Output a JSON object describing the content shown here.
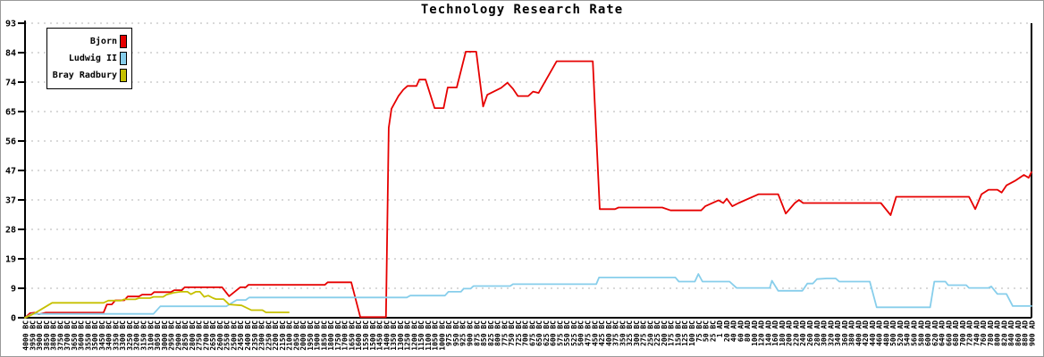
{
  "title": "Technology Research Rate",
  "legend": {
    "entries": [
      {
        "label": "Bjorn",
        "color": "#e60000"
      },
      {
        "label": "Ludwig II",
        "color": "#87ceeb"
      },
      {
        "label": "Bray Radbury",
        "color": "#c6c000"
      }
    ]
  },
  "axis": {
    "y_tick_labels": [
      "0",
      "9",
      "19",
      "28",
      "37",
      "47",
      "56",
      "65",
      "74",
      "84",
      "93"
    ],
    "y_min": 0,
    "y_max": 93
  },
  "chart_data": {
    "type": "line",
    "title": "Technology Research Rate",
    "xlabel": "",
    "ylabel": "",
    "ylim": [
      0,
      93
    ],
    "grid": "horizontal-dotted",
    "legend_position": "top-left",
    "y_tick_labels": [
      "0",
      "9",
      "19",
      "28",
      "37",
      "47",
      "56",
      "65",
      "74",
      "84",
      "93"
    ],
    "y_tick_values": [
      0,
      9.3,
      18.6,
      27.9,
      37.2,
      46.5,
      55.8,
      65.1,
      74.4,
      83.7,
      93
    ],
    "x_labels": [
      "4000 BC",
      "3950 BC",
      "3900 BC",
      "3850 BC",
      "3800 BC",
      "3750 BC",
      "3700 BC",
      "3650 BC",
      "3600 BC",
      "3550 BC",
      "3500 BC",
      "3450 BC",
      "3400 BC",
      "3350 BC",
      "3300 BC",
      "3250 BC",
      "3200 BC",
      "3150 BC",
      "3100 BC",
      "3050 BC",
      "3000 BC",
      "2950 BC",
      "2900 BC",
      "2850 BC",
      "2800 BC",
      "2750 BC",
      "2700 BC",
      "2650 BC",
      "2600 BC",
      "2550 BC",
      "2500 BC",
      "2450 BC",
      "2400 BC",
      "2350 BC",
      "2300 BC",
      "2250 BC",
      "2200 BC",
      "2150 BC",
      "2100 BC",
      "2050 BC",
      "2000 BC",
      "1950 BC",
      "1900 BC",
      "1850 BC",
      "1800 BC",
      "1750 BC",
      "1700 BC",
      "1650 BC",
      "1600 BC",
      "1550 BC",
      "1500 BC",
      "1450 BC",
      "1400 BC",
      "1350 BC",
      "1300 BC",
      "1250 BC",
      "1200 BC",
      "1150 BC",
      "1100 BC",
      "1050 BC",
      "1000 BC",
      "975 BC",
      "950 BC",
      "925 BC",
      "900 BC",
      "875 BC",
      "850 BC",
      "825 BC",
      "800 BC",
      "775 BC",
      "750 BC",
      "725 BC",
      "700 BC",
      "675 BC",
      "650 BC",
      "625 BC",
      "600 BC",
      "575 BC",
      "550 BC",
      "525 BC",
      "500 BC",
      "475 BC",
      "450 BC",
      "425 BC",
      "400 BC",
      "375 BC",
      "350 BC",
      "325 BC",
      "300 BC",
      "275 BC",
      "250 BC",
      "225 BC",
      "200 BC",
      "175 BC",
      "150 BC",
      "125 BC",
      "100 BC",
      "75 BC",
      "50 BC",
      "25 BC",
      "1 AD",
      "20 AD",
      "40 AD",
      "60 AD",
      "80 AD",
      "100 AD",
      "120 AD",
      "140 AD",
      "160 AD",
      "180 AD",
      "200 AD",
      "220 AD",
      "240 AD",
      "260 AD",
      "280 AD",
      "300 AD",
      "320 AD",
      "340 AD",
      "360 AD",
      "380 AD",
      "400 AD",
      "420 AD",
      "440 AD",
      "460 AD",
      "480 AD",
      "500 AD",
      "520 AD",
      "540 AD",
      "560 AD",
      "580 AD",
      "600 AD",
      "620 AD",
      "640 AD",
      "660 AD",
      "680 AD",
      "700 AD",
      "720 AD",
      "740 AD",
      "760 AD",
      "780 AD",
      "800 AD",
      "820 AD",
      "840 AD",
      "860 AD",
      "880 AD",
      "900 AD"
    ],
    "series": [
      {
        "name": "Bjorn",
        "color": "#e60000",
        "points": [
          [
            0,
            0
          ],
          [
            0.7,
            1.4
          ],
          [
            1.4,
            1.6
          ],
          [
            2,
            1.1
          ],
          [
            3,
            1.6
          ],
          [
            11.3,
            1.6
          ],
          [
            11.8,
            4.2
          ],
          [
            12.5,
            4.2
          ],
          [
            13,
            5.5
          ],
          [
            14.3,
            5.5
          ],
          [
            14.8,
            6.7
          ],
          [
            16.4,
            6.7
          ],
          [
            16.9,
            7.3
          ],
          [
            18.2,
            7.3
          ],
          [
            18.6,
            8.1
          ],
          [
            21,
            8.1
          ],
          [
            21.5,
            8.7
          ],
          [
            22.6,
            8.7
          ],
          [
            23,
            9.6
          ],
          [
            28.4,
            9.6
          ],
          [
            29.4,
            6.8
          ],
          [
            31,
            9.6
          ],
          [
            31.8,
            9.6
          ],
          [
            32.2,
            10.4
          ],
          [
            43.2,
            10.4
          ],
          [
            43.6,
            11.2
          ],
          [
            47,
            11.2
          ],
          [
            48.3,
            0.2
          ],
          [
            52,
            0.2
          ],
          [
            52.4,
            60
          ],
          [
            52.8,
            66
          ],
          [
            53.8,
            70
          ],
          [
            54.5,
            72
          ],
          [
            55.1,
            73.2
          ],
          [
            56.4,
            73.2
          ],
          [
            56.8,
            75.2
          ],
          [
            57.7,
            75.2
          ],
          [
            59,
            66.2
          ],
          [
            60.3,
            66.2
          ],
          [
            60.9,
            72.7
          ],
          [
            62.2,
            72.7
          ],
          [
            63.5,
            84
          ],
          [
            65,
            84
          ],
          [
            66,
            66.7
          ],
          [
            66.6,
            70.4
          ],
          [
            68.6,
            72.6
          ],
          [
            69.5,
            74.2
          ],
          [
            70.3,
            72.3
          ],
          [
            71,
            70
          ],
          [
            72.5,
            70
          ],
          [
            73.2,
            71.4
          ],
          [
            74,
            71
          ],
          [
            76.6,
            81
          ],
          [
            81.8,
            81
          ],
          [
            82.8,
            34.3
          ],
          [
            85,
            34.3
          ],
          [
            85.5,
            34.8
          ],
          [
            91.8,
            34.8
          ],
          [
            93,
            33.9
          ],
          [
            97.4,
            33.9
          ],
          [
            98,
            35.2
          ],
          [
            99.9,
            37.1
          ],
          [
            100.6,
            36.2
          ],
          [
            101.1,
            37.6
          ],
          [
            101.9,
            35.2
          ],
          [
            102.8,
            36.2
          ],
          [
            105.7,
            39
          ],
          [
            108.5,
            39
          ],
          [
            109.6,
            32.9
          ],
          [
            110.9,
            36.2
          ],
          [
            111.5,
            37.2
          ],
          [
            112.1,
            36.2
          ],
          [
            123.3,
            36.2
          ],
          [
            124.7,
            32.4
          ],
          [
            125.5,
            38.2
          ],
          [
            136,
            38.2
          ],
          [
            136.9,
            34.3
          ],
          [
            137.8,
            39
          ],
          [
            138.8,
            40.4
          ],
          [
            140.1,
            40.4
          ],
          [
            140.7,
            39.5
          ],
          [
            141.4,
            41.8
          ],
          [
            142.6,
            43.2
          ],
          [
            143.9,
            45.1
          ],
          [
            144.6,
            44.2
          ],
          [
            145,
            46
          ]
        ]
      },
      {
        "name": "Ludwig II",
        "color": "#87ceeb",
        "points": [
          [
            0,
            0
          ],
          [
            1,
            1.2
          ],
          [
            18.5,
            1.2
          ],
          [
            19.5,
            3.6
          ],
          [
            29,
            3.6
          ],
          [
            30.5,
            5.6
          ],
          [
            31.8,
            5.6
          ],
          [
            32.3,
            6.4
          ],
          [
            55,
            6.4
          ],
          [
            55.5,
            7
          ],
          [
            60.5,
            7
          ],
          [
            61,
            8.2
          ],
          [
            62.8,
            8.2
          ],
          [
            63.2,
            9.2
          ],
          [
            64.2,
            9.2
          ],
          [
            64.6,
            10
          ],
          [
            69.9,
            10
          ],
          [
            70.3,
            10.6
          ],
          [
            82.3,
            10.6
          ],
          [
            82.7,
            12.7
          ],
          [
            93.7,
            12.7
          ],
          [
            94.2,
            11.4
          ],
          [
            96.5,
            11.4
          ],
          [
            97,
            13.8
          ],
          [
            97.6,
            11.4
          ],
          [
            101.5,
            11.4
          ],
          [
            102.5,
            9.4
          ],
          [
            107.3,
            9.4
          ],
          [
            107.6,
            11.7
          ],
          [
            108.5,
            8.5
          ],
          [
            112,
            8.5
          ],
          [
            112.7,
            10.8
          ],
          [
            113.5,
            10.8
          ],
          [
            114.1,
            12.2
          ],
          [
            115.5,
            12.4
          ],
          [
            116.8,
            12.4
          ],
          [
            117.3,
            11.4
          ],
          [
            121.7,
            11.4
          ],
          [
            122.7,
            3.3
          ],
          [
            130.4,
            3.3
          ],
          [
            131,
            11.4
          ],
          [
            132.6,
            11.4
          ],
          [
            133,
            10.3
          ],
          [
            135.6,
            10.3
          ],
          [
            136,
            9.4
          ],
          [
            138.8,
            9.4
          ],
          [
            139.2,
            9.9
          ],
          [
            140.1,
            7.5
          ],
          [
            141.4,
            7.5
          ],
          [
            142.3,
            3.7
          ],
          [
            145,
            3.7
          ]
        ]
      },
      {
        "name": "Bray Radbury",
        "color": "#c6c000",
        "points": [
          [
            0,
            0
          ],
          [
            1,
            1
          ],
          [
            2,
            2.2
          ],
          [
            3.9,
            4.7
          ],
          [
            11.3,
            4.7
          ],
          [
            12,
            5.4
          ],
          [
            13.8,
            5.4
          ],
          [
            14.3,
            5.8
          ],
          [
            15.9,
            5.8
          ],
          [
            16.4,
            6.2
          ],
          [
            18,
            6.2
          ],
          [
            18.5,
            6.6
          ],
          [
            19.9,
            6.6
          ],
          [
            20.4,
            7.3
          ],
          [
            21.4,
            7.9
          ],
          [
            22.4,
            8.2
          ],
          [
            23.4,
            8.2
          ],
          [
            23.9,
            7.4
          ],
          [
            24.6,
            8.2
          ],
          [
            25.2,
            8.2
          ],
          [
            25.8,
            6.6
          ],
          [
            26.4,
            7
          ],
          [
            27.1,
            6.2
          ],
          [
            27.5,
            5.9
          ],
          [
            28.6,
            5.9
          ],
          [
            29.4,
            4.2
          ],
          [
            31.2,
            3.9
          ],
          [
            32.6,
            2.4
          ],
          [
            34.2,
            2.4
          ],
          [
            34.7,
            1.7
          ],
          [
            38,
            1.7
          ]
        ]
      }
    ]
  },
  "style": {
    "grid_color": "#b3b3b3",
    "axis_color": "#000000",
    "background": "#ffffff"
  }
}
